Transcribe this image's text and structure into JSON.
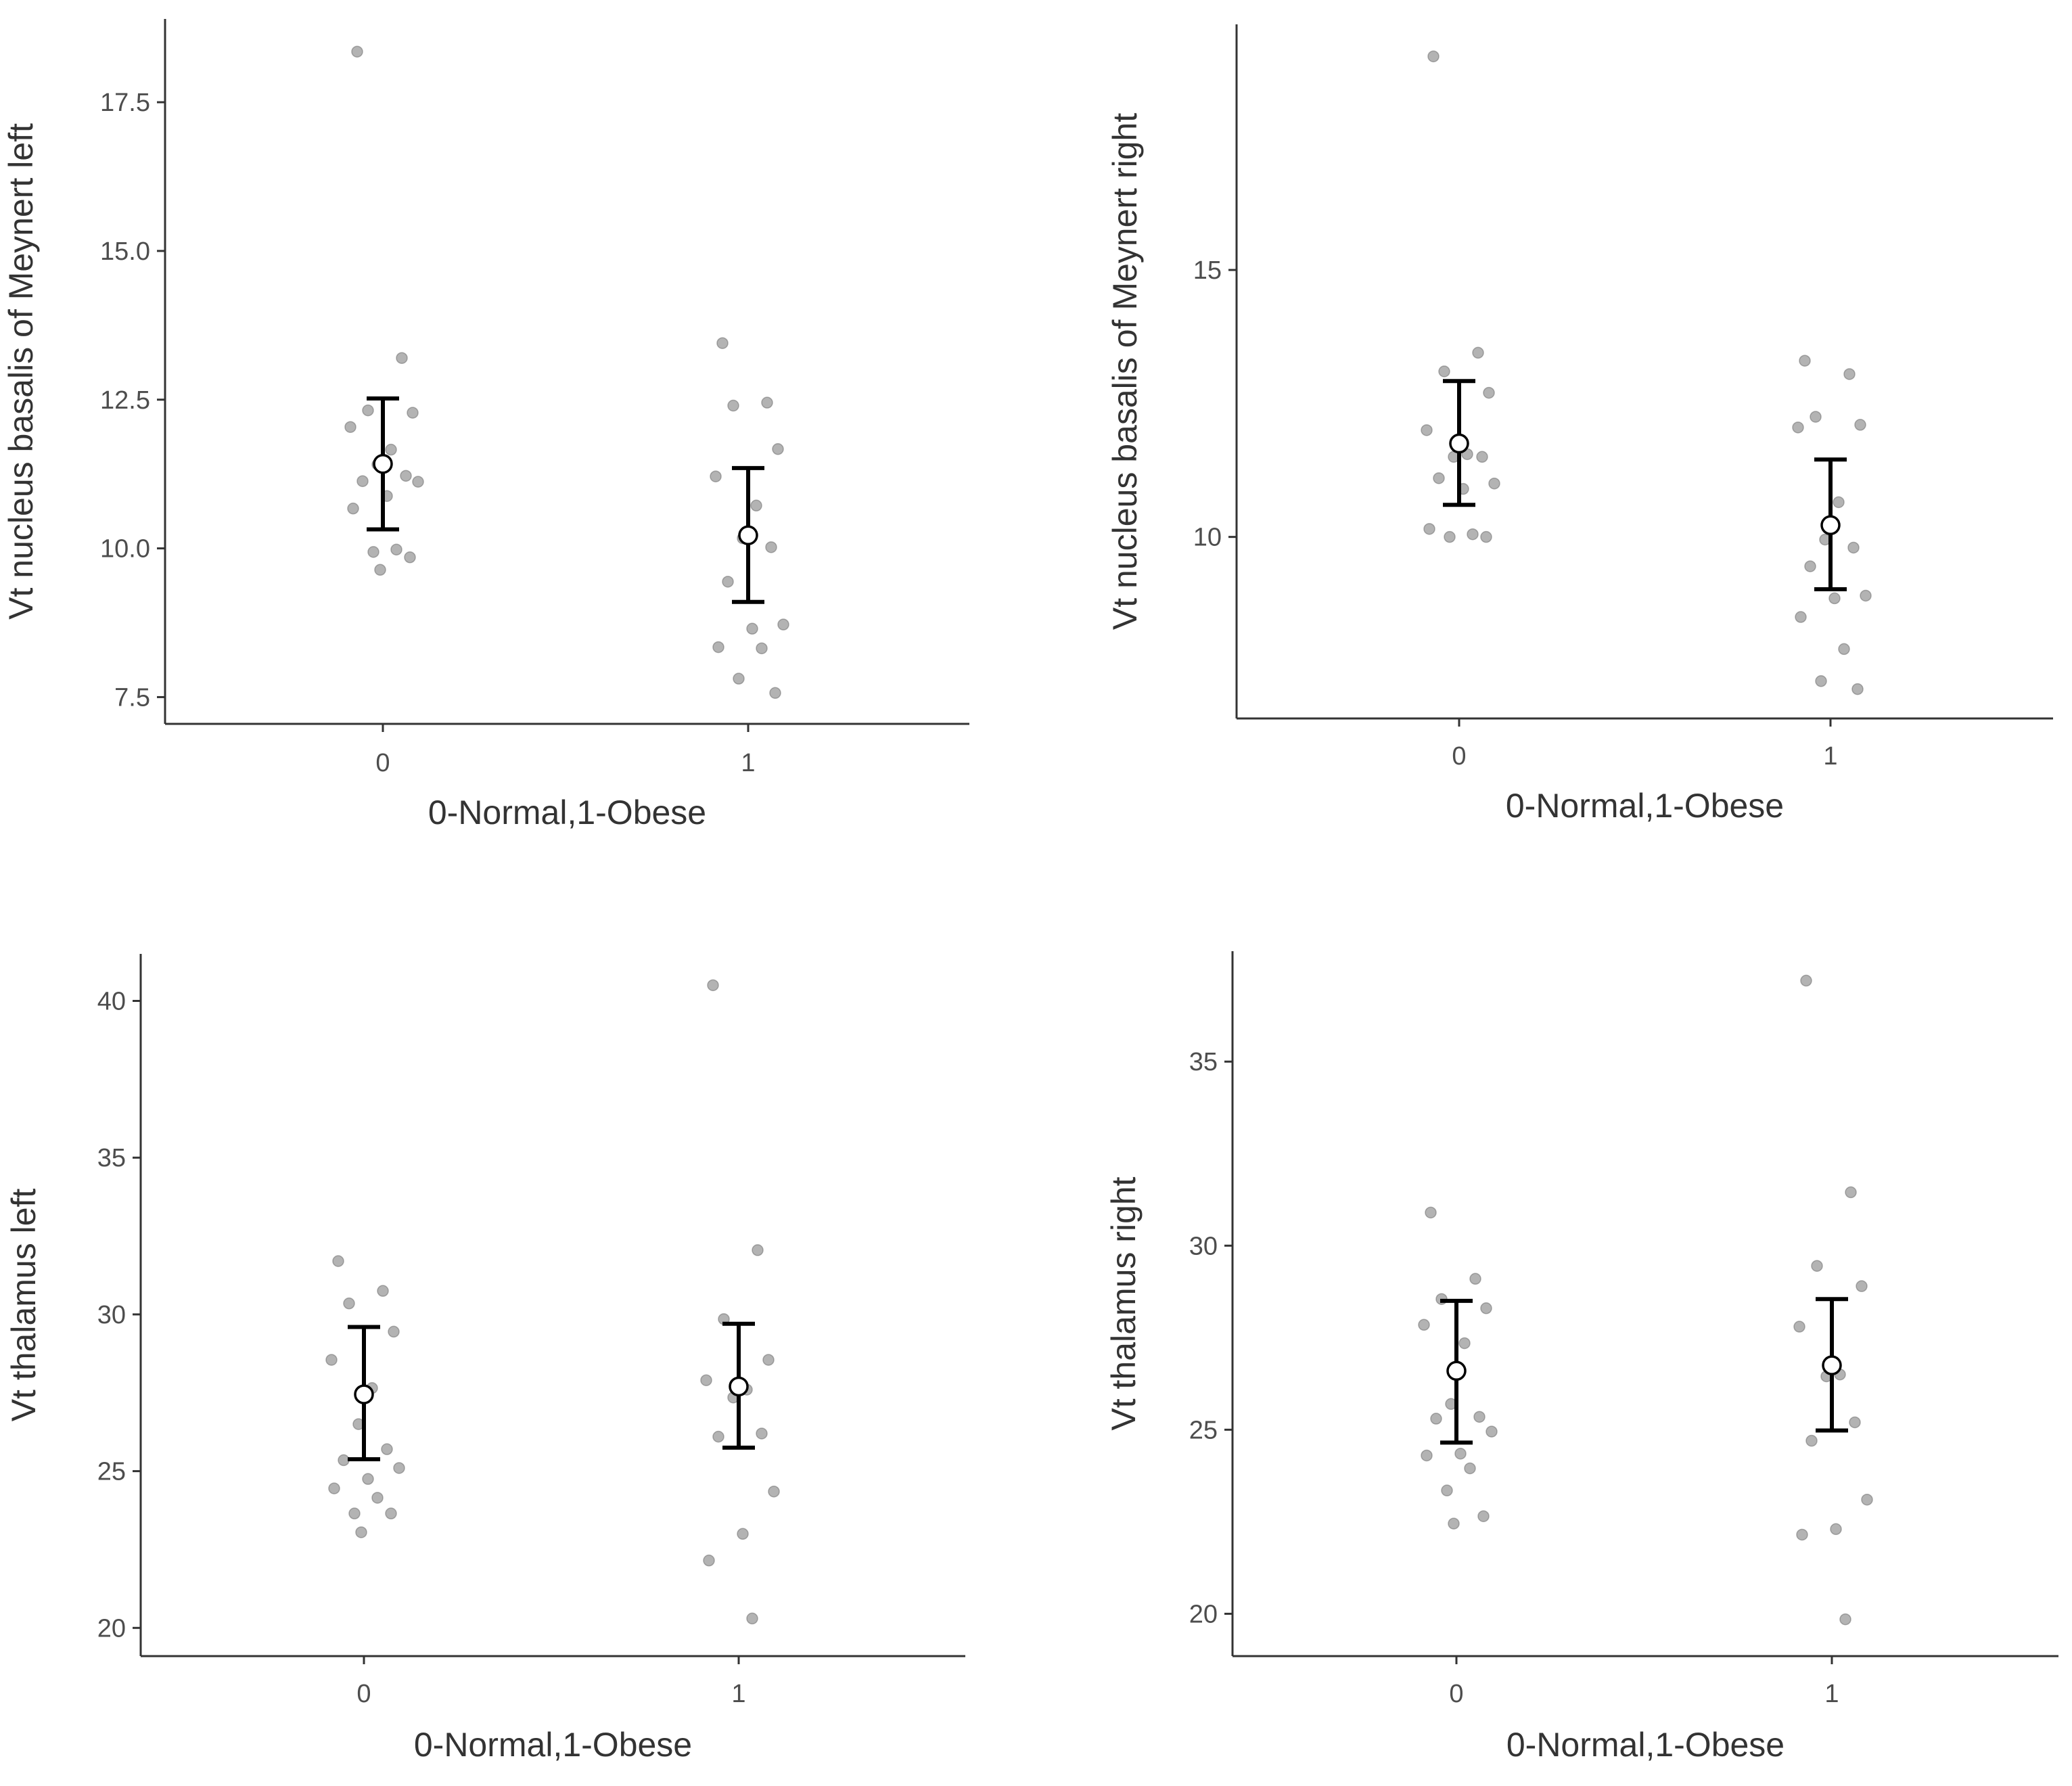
{
  "figure_title": "",
  "chart_data": [
    {
      "type": "scatter",
      "panel": "top-left",
      "ylabel": "Vt nucleus basalis of Meynert left",
      "xlabel": "0-Normal,1-Obese",
      "categories": [
        "0",
        "1"
      ],
      "ylim": [
        7.05,
        18.9
      ],
      "yticks": [
        7.5,
        10.0,
        12.5,
        15.0,
        17.5
      ],
      "ytick_labels": [
        "7.5",
        "10.0",
        "12.5",
        "15.0",
        "17.5"
      ],
      "points": [
        {
          "group": "0",
          "values": [
            18.35,
            13.2,
            12.32,
            12.28,
            12.04,
            11.66,
            11.41,
            11.22,
            11.13,
            11.12,
            10.88,
            10.67,
            9.98,
            9.94,
            9.85,
            9.64
          ]
        },
        {
          "group": "1",
          "values": [
            13.45,
            12.45,
            12.4,
            11.67,
            11.21,
            10.72,
            10.17,
            10.02,
            9.44,
            8.72,
            8.65,
            8.34,
            8.32,
            7.81,
            7.57
          ]
        }
      ],
      "means": [
        11.42,
        10.22
      ],
      "error_low": [
        10.32,
        9.1
      ],
      "error_high": [
        12.52,
        11.35
      ]
    },
    {
      "type": "scatter",
      "panel": "top-right",
      "ylabel": "Vt nucleus basalis of Meynert right",
      "xlabel": "0-Normal,1-Obese",
      "categories": [
        "0",
        "1"
      ],
      "ylim": [
        6.6,
        19.6
      ],
      "yticks": [
        10,
        15
      ],
      "ytick_labels": [
        "10",
        "15"
      ],
      "points": [
        {
          "group": "0",
          "values": [
            19.0,
            13.45,
            13.1,
            12.7,
            12.0,
            11.55,
            11.5,
            11.5,
            11.1,
            11.0,
            10.9,
            10.15,
            10.05,
            10.0,
            10.0
          ]
        },
        {
          "group": "1",
          "values": [
            13.3,
            13.05,
            12.25,
            12.1,
            12.05,
            10.65,
            9.95,
            9.8,
            9.45,
            8.9,
            8.85,
            8.5,
            7.9,
            7.3,
            7.15
          ]
        }
      ],
      "means": [
        11.75,
        10.22
      ],
      "error_low": [
        10.6,
        9.02
      ],
      "error_high": [
        12.92,
        11.45
      ]
    },
    {
      "type": "scatter",
      "panel": "bottom-left",
      "ylabel": "Vt thalamus left",
      "xlabel": "0-Normal,1-Obese",
      "categories": [
        "0",
        "1"
      ],
      "ylim": [
        19.1,
        41.5
      ],
      "yticks": [
        20,
        25,
        30,
        35,
        40
      ],
      "ytick_labels": [
        "20",
        "25",
        "30",
        "35",
        "40"
      ],
      "points": [
        {
          "group": "0",
          "values": [
            31.7,
            30.75,
            30.35,
            29.45,
            28.55,
            27.65,
            26.5,
            25.7,
            25.35,
            25.1,
            24.75,
            24.45,
            24.15,
            23.65,
            23.65,
            23.05
          ]
        },
        {
          "group": "1",
          "values": [
            40.5,
            32.05,
            29.85,
            28.55,
            27.9,
            27.6,
            27.35,
            26.2,
            26.1,
            24.35,
            23.0,
            22.15,
            20.3
          ]
        }
      ],
      "means": [
        27.45,
        27.7
      ],
      "error_low": [
        25.38,
        25.75
      ],
      "error_high": [
        29.6,
        29.7
      ]
    },
    {
      "type": "scatter",
      "panel": "bottom-right",
      "ylabel": "Vt thalamus right",
      "xlabel": "0-Normal,1-Obese",
      "categories": [
        "0",
        "1"
      ],
      "ylim": [
        18.85,
        38.0
      ],
      "yticks": [
        20,
        25,
        30,
        35
      ],
      "ytick_labels": [
        "20",
        "25",
        "30",
        "35"
      ],
      "points": [
        {
          "group": "0",
          "values": [
            30.9,
            29.1,
            28.55,
            28.3,
            27.85,
            27.35,
            25.7,
            25.35,
            25.3,
            24.95,
            24.35,
            24.3,
            23.95,
            23.35,
            22.65,
            22.45
          ]
        },
        {
          "group": "1",
          "values": [
            37.2,
            31.45,
            29.45,
            28.9,
            27.8,
            26.5,
            26.45,
            25.2,
            24.7,
            23.1,
            22.3,
            22.15,
            19.85
          ]
        }
      ],
      "means": [
        26.6,
        26.75
      ],
      "error_low": [
        24.65,
        24.98
      ],
      "error_high": [
        28.5,
        28.55
      ]
    }
  ]
}
